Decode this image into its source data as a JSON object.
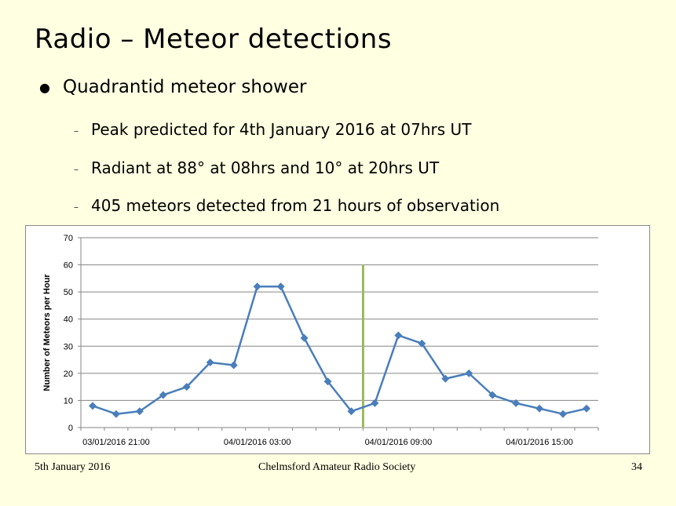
{
  "slide": {
    "title": "Radio – Meteor detections",
    "bullet": "Quadrantid meteor shower",
    "bullet_marker": "●",
    "sub_marker": "–",
    "sub_bullets": [
      "Peak predicted for 4th January 2016 at 07hrs UT",
      "Radiant at 88° at 08hrs and 10° at 20hrs UT",
      "405 meteors detected from 21 hours of observation"
    ]
  },
  "footer": {
    "date": "5th January 2016",
    "society": "Chelmsford Amateur Radio Society",
    "page": "34"
  },
  "colors": {
    "background": "#FFFFE1",
    "series": "#4A7EBB",
    "marker_line": "#9BBB59",
    "grid": "#868686"
  },
  "chart_data": {
    "type": "line",
    "title": "",
    "xlabel": "",
    "ylabel": "Number of Meteors per Hour",
    "ylim": [
      0,
      70
    ],
    "yticks": [
      0,
      10,
      20,
      30,
      40,
      50,
      60,
      70
    ],
    "grid": true,
    "x_start": "03/01/2016 20:00",
    "x_step_hours": 1,
    "x_tick_labels": [
      {
        "index": 1,
        "label": "03/01/2016 21:00"
      },
      {
        "index": 7,
        "label": "04/01/2016 03:00"
      },
      {
        "index": 13,
        "label": "04/01/2016 09:00"
      },
      {
        "index": 19,
        "label": "04/01/2016 15:00"
      }
    ],
    "n_slots": 22,
    "series": [
      {
        "name": "",
        "values": [
          8,
          5,
          6,
          12,
          15,
          24,
          23,
          52,
          52,
          33,
          17,
          6,
          9,
          34,
          31,
          18,
          20,
          12,
          9,
          7,
          5,
          7
        ]
      }
    ],
    "peak_marker_x": 11.5,
    "peak_marker_top": 60
  }
}
